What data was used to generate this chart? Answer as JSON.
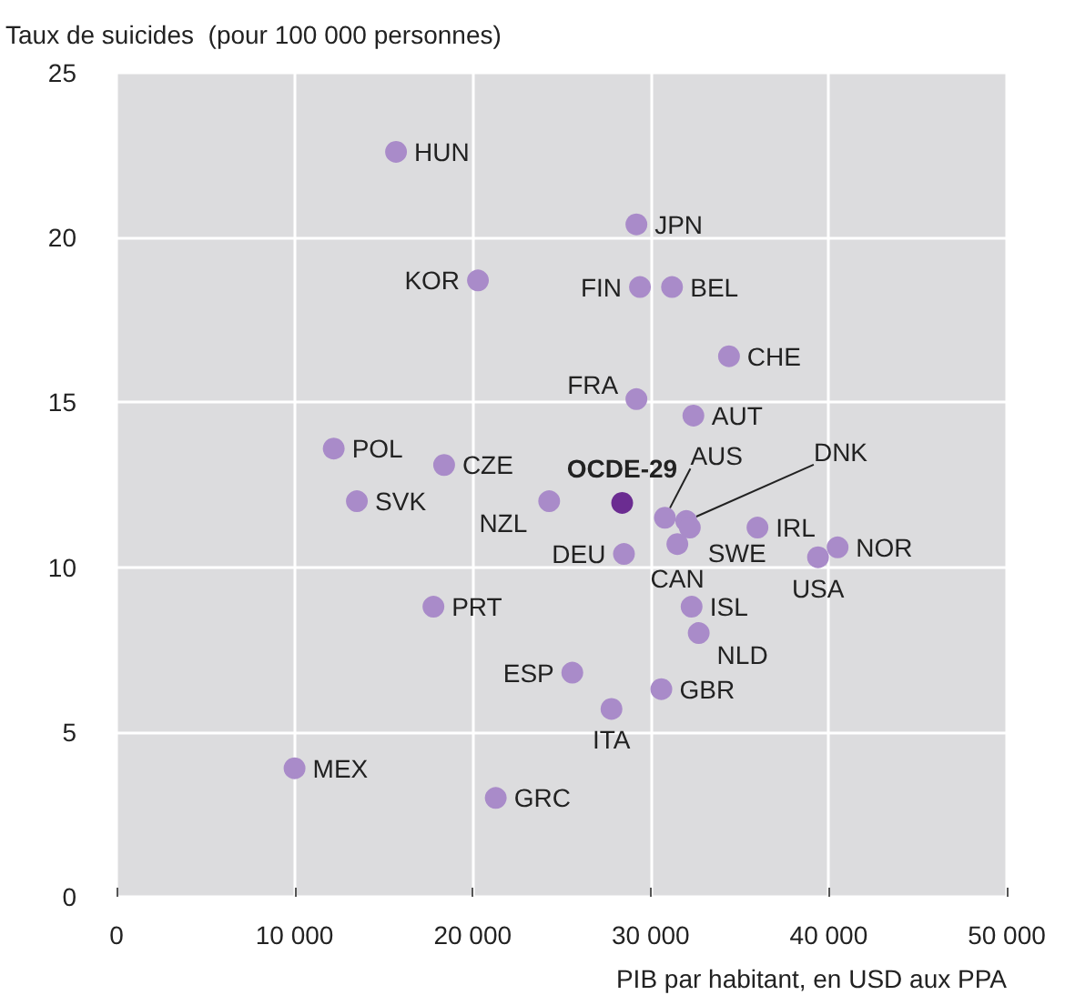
{
  "chart_data": {
    "type": "scatter",
    "ylabel": "Taux de suicides  (pour 100 000 personnes)",
    "xlabel": "PIB par habitant, en USD aux PPA",
    "xlim": [
      0,
      50000
    ],
    "xticks": [
      0,
      {
        "value": 10000,
        "label": "10 000"
      },
      {
        "value": 20000,
        "label": "20 000"
      },
      {
        "value": 30000,
        "label": "30 000"
      },
      {
        "value": 40000,
        "label": "40 000"
      },
      {
        "value": 50000,
        "label": "50 000"
      }
    ],
    "ylim": [
      0,
      25
    ],
    "yticks": [
      0,
      5,
      10,
      15,
      20,
      25
    ],
    "grid": true,
    "marker": "circle",
    "series": [
      {
        "color": "#a98bc9",
        "x": [
          15700,
          29200,
          20300,
          29400,
          31200,
          34400,
          29200,
          32400,
          12200,
          18400,
          13500,
          24300,
          30800,
          32000,
          32200,
          31500,
          28500,
          36000,
          40500,
          39400,
          32300,
          32700,
          17800,
          25600,
          30600,
          27800,
          10000,
          21300
        ],
        "values": [
          22.6,
          20.4,
          18.7,
          18.5,
          18.5,
          16.4,
          15.1,
          14.6,
          13.6,
          13.1,
          12.0,
          12.0,
          11.5,
          11.4,
          11.2,
          10.7,
          10.4,
          11.2,
          10.6,
          10.3,
          8.8,
          8.0,
          8.8,
          6.8,
          6.3,
          5.7,
          3.9,
          3.0
        ],
        "value_labels": [
          "HUN",
          "JPN",
          "KOR",
          "FIN",
          "BEL",
          "CHE",
          "FRA",
          "AUT",
          "POL",
          "CZE",
          "SVK",
          "NZL",
          "AUS",
          "DNK",
          "SWE",
          "CAN",
          "DEU",
          "IRL",
          "NOR",
          "USA",
          "ISL",
          "NLD",
          "PRT",
          "ESP",
          "GBR",
          "ITA",
          "MEX",
          "GRC"
        ]
      },
      {
        "color": "#6b2c91",
        "x": [
          28400
        ],
        "values": [
          11.95
        ],
        "value_labels": [
          "OCDE-29"
        ]
      }
    ]
  }
}
